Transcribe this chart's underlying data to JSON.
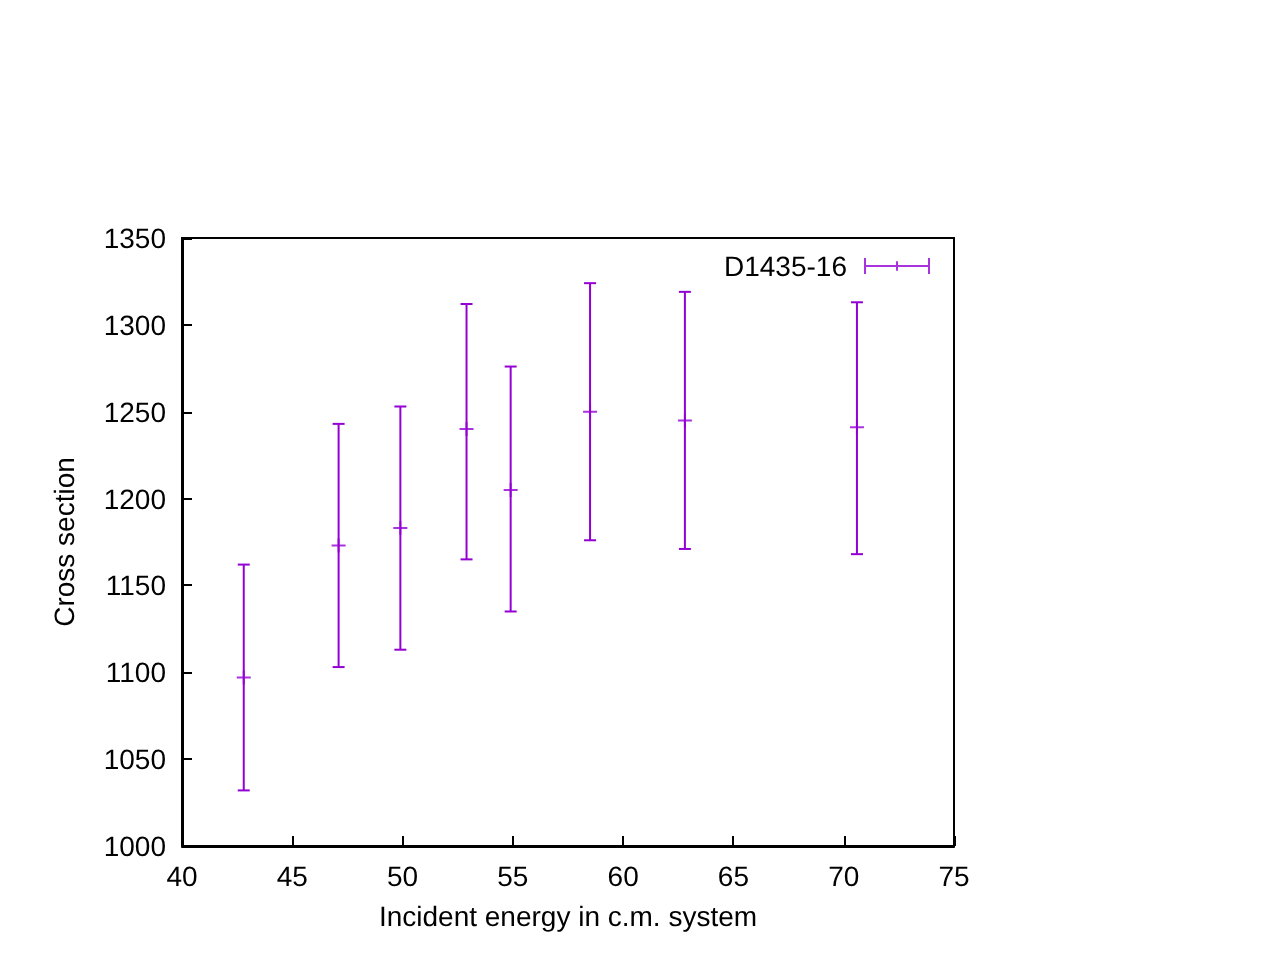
{
  "chart_data": {
    "type": "scatter",
    "xlabel": "Incident energy in c.m. system",
    "ylabel": "Cross section",
    "xlim": [
      40,
      75
    ],
    "xticks": [
      40,
      45,
      50,
      55,
      60,
      65,
      70,
      75
    ],
    "ylim": [
      1000,
      1350
    ],
    "yticks": [
      1000,
      1050,
      1100,
      1150,
      1200,
      1250,
      1300,
      1350
    ],
    "grid": false,
    "legend": "top right",
    "marker": "cross",
    "series": [
      {
        "name": "D1435-16",
        "color": "#9400d3",
        "x": [
          42.8,
          47.1,
          49.9,
          52.9,
          54.9,
          58.5,
          62.8,
          70.6
        ],
        "values": [
          1097,
          1173,
          1183,
          1240,
          1205,
          1250,
          1245,
          1241
        ],
        "errors": [
          [
            1032,
            1162
          ],
          [
            1103,
            1243
          ],
          [
            1113,
            1253
          ],
          [
            1165,
            1312
          ],
          [
            1135,
            1276
          ],
          [
            1176,
            1324
          ],
          [
            1171,
            1319
          ],
          [
            1168,
            1313
          ]
        ]
      }
    ]
  }
}
